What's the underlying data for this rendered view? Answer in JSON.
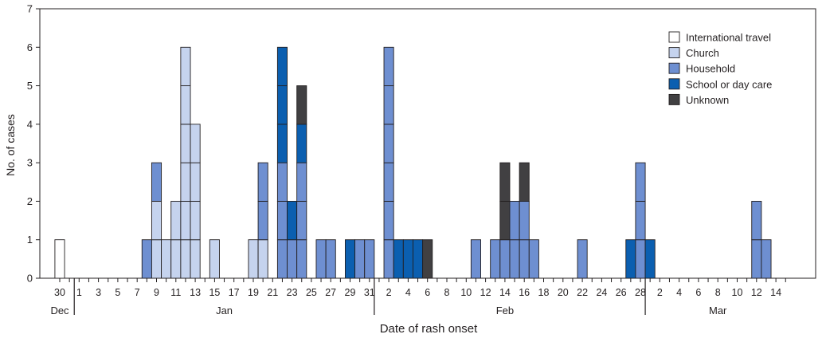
{
  "chart_data": {
    "type": "bar",
    "stacked": true,
    "title": "",
    "xlabel": "Date of rash onset",
    "ylabel": "No. of cases",
    "ylim": [
      0,
      7
    ],
    "yticks": [
      0,
      1,
      2,
      3,
      4,
      5,
      6,
      7
    ],
    "grid": false,
    "legend_position": "top-right",
    "start_date": "Dec 30",
    "x_dates": [
      "Dec 30",
      "Dec 31",
      "Jan 1",
      "Jan 2",
      "Jan 3",
      "Jan 4",
      "Jan 5",
      "Jan 6",
      "Jan 7",
      "Jan 8",
      "Jan 9",
      "Jan 10",
      "Jan 11",
      "Jan 12",
      "Jan 13",
      "Jan 14",
      "Jan 15",
      "Jan 16",
      "Jan 17",
      "Jan 18",
      "Jan 19",
      "Jan 20",
      "Jan 21",
      "Jan 22",
      "Jan 23",
      "Jan 24",
      "Jan 25",
      "Jan 26",
      "Jan 27",
      "Jan 28",
      "Jan 29",
      "Jan 30",
      "Jan 31",
      "Feb 1",
      "Feb 2",
      "Feb 3",
      "Feb 4",
      "Feb 5",
      "Feb 6",
      "Feb 7",
      "Feb 8",
      "Feb 9",
      "Feb 10",
      "Feb 11",
      "Feb 12",
      "Feb 13",
      "Feb 14",
      "Feb 15",
      "Feb 16",
      "Feb 17",
      "Feb 18",
      "Feb 19",
      "Feb 20",
      "Feb 21",
      "Feb 22",
      "Feb 23",
      "Feb 24",
      "Feb 25",
      "Feb 26",
      "Feb 27",
      "Feb 28",
      "Mar 1",
      "Mar 2",
      "Mar 3",
      "Mar 4",
      "Mar 5",
      "Mar 6",
      "Mar 7",
      "Mar 8",
      "Mar 9",
      "Mar 10",
      "Mar 11",
      "Mar 12",
      "Mar 13",
      "Mar 14",
      "Mar 15"
    ],
    "tick_labels": [
      {
        "text": "30",
        "date": "Dec 30"
      },
      {
        "text": "1",
        "date": "Jan 1"
      },
      {
        "text": "3",
        "date": "Jan 3"
      },
      {
        "text": "5",
        "date": "Jan 5"
      },
      {
        "text": "7",
        "date": "Jan 7"
      },
      {
        "text": "9",
        "date": "Jan 9"
      },
      {
        "text": "11",
        "date": "Jan 11"
      },
      {
        "text": "13",
        "date": "Jan 13"
      },
      {
        "text": "15",
        "date": "Jan 15"
      },
      {
        "text": "17",
        "date": "Jan 17"
      },
      {
        "text": "19",
        "date": "Jan 19"
      },
      {
        "text": "21",
        "date": "Jan 21"
      },
      {
        "text": "23",
        "date": "Jan 23"
      },
      {
        "text": "25",
        "date": "Jan 25"
      },
      {
        "text": "27",
        "date": "Jan 27"
      },
      {
        "text": "29",
        "date": "Jan 29"
      },
      {
        "text": "31",
        "date": "Jan 31"
      },
      {
        "text": "2",
        "date": "Feb 2"
      },
      {
        "text": "4",
        "date": "Feb 4"
      },
      {
        "text": "6",
        "date": "Feb 6"
      },
      {
        "text": "8",
        "date": "Feb 8"
      },
      {
        "text": "10",
        "date": "Feb 10"
      },
      {
        "text": "12",
        "date": "Feb 12"
      },
      {
        "text": "14",
        "date": "Feb 14"
      },
      {
        "text": "16",
        "date": "Feb 16"
      },
      {
        "text": "18",
        "date": "Feb 18"
      },
      {
        "text": "20",
        "date": "Feb 20"
      },
      {
        "text": "22",
        "date": "Feb 22"
      },
      {
        "text": "24",
        "date": "Feb 24"
      },
      {
        "text": "26",
        "date": "Feb 26"
      },
      {
        "text": "28",
        "date": "Feb 28"
      },
      {
        "text": "2",
        "date": "Mar 2"
      },
      {
        "text": "4",
        "date": "Mar 4"
      },
      {
        "text": "6",
        "date": "Mar 6"
      },
      {
        "text": "8",
        "date": "Mar 8"
      },
      {
        "text": "10",
        "date": "Mar 10"
      },
      {
        "text": "12",
        "date": "Mar 12"
      },
      {
        "text": "14",
        "date": "Mar 14"
      }
    ],
    "month_labels": [
      {
        "text": "Dec",
        "center_date": "Dec 30"
      },
      {
        "text": "Jan",
        "center_date": "Jan 16"
      },
      {
        "text": "Feb",
        "center_date": "Feb 14"
      },
      {
        "text": "Mar",
        "center_date": "Mar 8"
      }
    ],
    "month_boundaries": [
      "Jan 1",
      "Feb 1",
      "Mar 1"
    ],
    "categories": [
      "International travel",
      "Church",
      "Household",
      "School or day care",
      "Unknown"
    ],
    "colors": {
      "International travel": "#ffffff",
      "Church": "#c5d3ee",
      "Household": "#6e8fd1",
      "School or day care": "#0b5fb0",
      "Unknown": "#414042"
    },
    "bars": [
      {
        "date": "Dec 30",
        "International travel": 1
      },
      {
        "date": "Jan 8",
        "Household": 1
      },
      {
        "date": "Jan 9",
        "Church": 2,
        "Household": 1
      },
      {
        "date": "Jan 10",
        "Church": 1
      },
      {
        "date": "Jan 11",
        "Church": 2
      },
      {
        "date": "Jan 12",
        "Church": 6
      },
      {
        "date": "Jan 13",
        "Church": 4
      },
      {
        "date": "Jan 15",
        "Church": 1
      },
      {
        "date": "Jan 19",
        "Church": 1
      },
      {
        "date": "Jan 20",
        "Church": 1,
        "Household": 2
      },
      {
        "date": "Jan 22",
        "Household": 3,
        "School or day care": 3
      },
      {
        "date": "Jan 23",
        "Household": 1,
        "School or day care": 1
      },
      {
        "date": "Jan 24",
        "Household": 3,
        "School or day care": 1,
        "Unknown": 1
      },
      {
        "date": "Jan 26",
        "Household": 1
      },
      {
        "date": "Jan 27",
        "Household": 1
      },
      {
        "date": "Jan 29",
        "School or day care": 1
      },
      {
        "date": "Jan 30",
        "Household": 1
      },
      {
        "date": "Jan 31",
        "Household": 1
      },
      {
        "date": "Feb 2",
        "Household": 6
      },
      {
        "date": "Feb 3",
        "School or day care": 1
      },
      {
        "date": "Feb 4",
        "School or day care": 1
      },
      {
        "date": "Feb 5",
        "School or day care": 1
      },
      {
        "date": "Feb 6",
        "Unknown": 1
      },
      {
        "date": "Feb 11",
        "Household": 1
      },
      {
        "date": "Feb 13",
        "Household": 1
      },
      {
        "date": "Feb 14",
        "Household": 1,
        "Unknown": 2
      },
      {
        "date": "Feb 15",
        "Household": 2
      },
      {
        "date": "Feb 16",
        "Household": 2,
        "Unknown": 1
      },
      {
        "date": "Feb 17",
        "Household": 1
      },
      {
        "date": "Feb 22",
        "Household": 1
      },
      {
        "date": "Feb 27",
        "School or day care": 1
      },
      {
        "date": "Feb 28",
        "Household": 3
      },
      {
        "date": "Mar 1",
        "School or day care": 1
      },
      {
        "date": "Mar 12",
        "Household": 2
      },
      {
        "date": "Mar 13",
        "Household": 1
      }
    ]
  }
}
